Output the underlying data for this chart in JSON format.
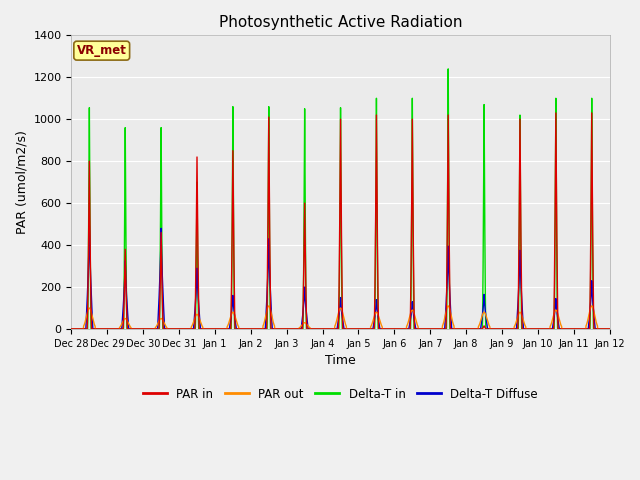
{
  "title": "Photosynthetic Active Radiation",
  "xlabel": "Time",
  "ylabel": "PAR (umol/m2/s)",
  "ylim": [
    0,
    1400
  ],
  "yticks": [
    0,
    200,
    400,
    600,
    800,
    1000,
    1200,
    1400
  ],
  "label_box": "VR_met",
  "label_box_color": "#ffff99",
  "label_box_text_color": "#8b0000",
  "legend_entries": [
    "PAR in",
    "PAR out",
    "Delta-T in",
    "Delta-T Diffuse"
  ],
  "legend_colors": [
    "#dd0000",
    "#ff8c00",
    "#00dd00",
    "#0000cc"
  ],
  "bg_inner": "#ebebeb",
  "bg_outer": "#f0f0f0",
  "n_days": 15,
  "day_labels": [
    "Dec 28",
    "Dec 29",
    "Dec 30",
    "Dec 31",
    "Jan 1",
    "Jan 2",
    "Jan 3",
    "Jan 4",
    "Jan 5",
    "Jan 6",
    "Jan 7",
    "Jan 8",
    "Jan 9",
    "Jan 10",
    "Jan 11",
    "Jan 12"
  ],
  "par_in_peaks": [
    800,
    380,
    460,
    820,
    850,
    1010,
    600,
    1000,
    1020,
    1000,
    1020,
    15,
    1000,
    1030,
    1030
  ],
  "par_out_peaks": [
    100,
    50,
    50,
    70,
    80,
    110,
    30,
    100,
    80,
    90,
    110,
    80,
    80,
    90,
    110
  ],
  "delta_t_in_peaks": [
    1055,
    960,
    960,
    700,
    1060,
    1060,
    1050,
    1055,
    1100,
    1100,
    1240,
    1070,
    1020,
    1100,
    1100
  ],
  "delta_t_diff_peaks": [
    490,
    325,
    480,
    290,
    160,
    430,
    200,
    150,
    140,
    130,
    395,
    165,
    375,
    145,
    230
  ],
  "pts_per_day": 144
}
